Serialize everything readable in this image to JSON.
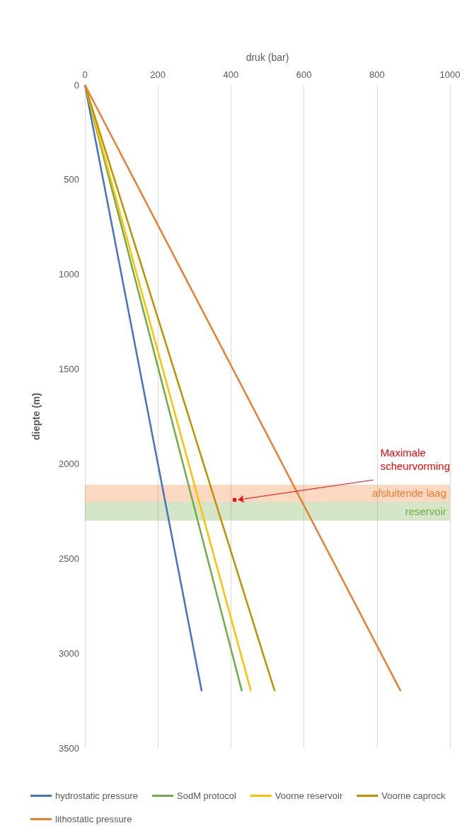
{
  "chart_data": {
    "type": "line",
    "xlabel": "druk (bar)",
    "ylabel": "diepte (m)",
    "xlim": [
      0,
      1000
    ],
    "xticks": [
      0,
      200,
      400,
      600,
      800,
      1000
    ],
    "ylim": [
      3500,
      0
    ],
    "yticks": [
      0,
      500,
      1000,
      1500,
      2000,
      2500,
      3000,
      3500
    ],
    "grid": "x",
    "legend": "bottom",
    "marker": "none",
    "line_style": "solid",
    "series": [
      {
        "name": "hydrostatic pressure",
        "color": "#4472c4",
        "x": [
          0,
          320
        ],
        "values": [
          0,
          3200
        ]
      },
      {
        "name": "SodM protocol",
        "color": "#70ad47",
        "x": [
          0,
          430
        ],
        "values": [
          0,
          3200
        ]
      },
      {
        "name": "Voorne reservoir",
        "color": "#ffc000",
        "x": [
          0,
          455
        ],
        "values": [
          0,
          3200
        ]
      },
      {
        "name": "Voorne caprock",
        "color": "#bf9000",
        "x": [
          0,
          520
        ],
        "values": [
          0,
          3200
        ]
      },
      {
        "name": "lithostatic pressure",
        "color": "#ed7d31",
        "x": [
          0,
          865
        ],
        "values": [
          0,
          3200
        ]
      }
    ],
    "bands": [
      {
        "axis": "y",
        "from": 2110,
        "to": 2200,
        "label": "afsluitende laag",
        "color": "#ed7d31"
      },
      {
        "axis": "y",
        "from": 2200,
        "to": 2300,
        "label": "reservoir",
        "color": "#70ad47"
      }
    ],
    "annotations": [
      {
        "text": "Maximale\nscheurvorming",
        "x": 410,
        "y": 2190
      }
    ]
  }
}
